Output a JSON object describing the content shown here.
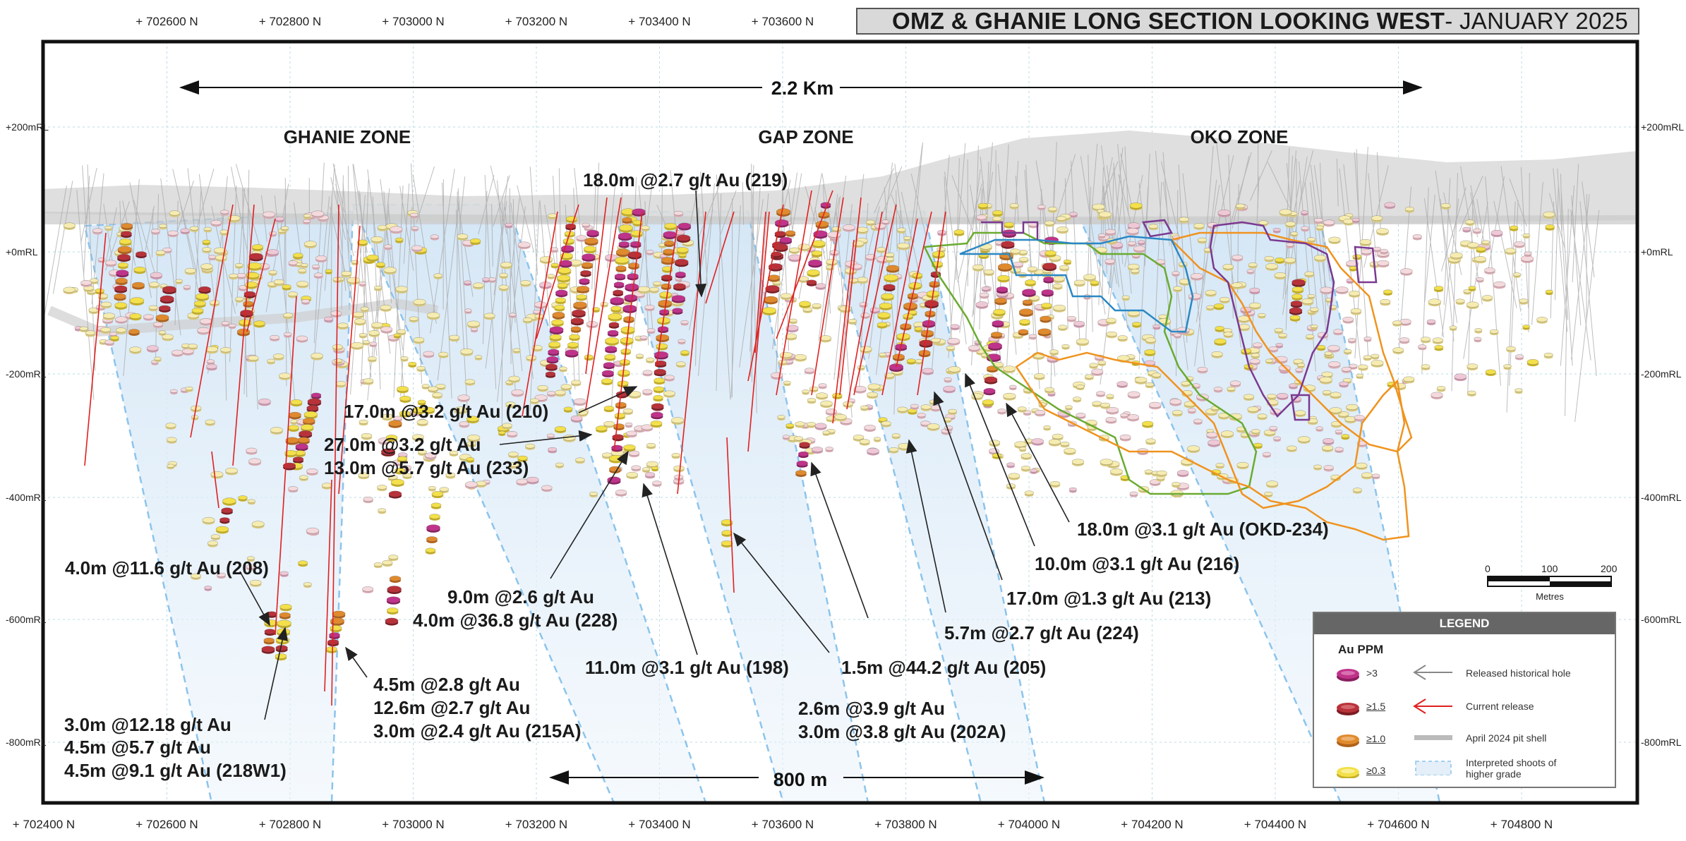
{
  "title": {
    "bold": "OMZ & GHANIE LONG SECTION LOOKING WEST",
    "rest": " - JANUARY 2025"
  },
  "top_eastings": [
    "+ 702600 N",
    "+ 702800 N",
    "+ 703000 N",
    "+ 703200 N",
    "+ 703400 N",
    "+ 703600 N"
  ],
  "bottom_eastings": [
    "+ 702400 N",
    "+ 702600 N",
    "+ 702800 N",
    "+ 703000 N",
    "+ 703200 N",
    "+ 703400 N",
    "+ 703600 N",
    "+ 703800 N",
    "+ 704000 N",
    "+ 704200 N",
    "+ 704400 N",
    "+ 704600 N",
    "+ 704800 N"
  ],
  "elevations": [
    "+200mRL",
    "+0mRL",
    "-200mRL",
    "-400mRL",
    "-600mRL",
    "-800mRL"
  ],
  "dimensions": {
    "top": "2.2 Km",
    "bottom": "800 m"
  },
  "zones": [
    "GHANIE ZONE",
    "GAP ZONE",
    "OKO ZONE"
  ],
  "intercepts": [
    {
      "lines": [
        "18.0m @2.7 g/t Au (219)"
      ]
    },
    {
      "lines": [
        "17.0m @3.2 g/t Au (210)"
      ]
    },
    {
      "lines": [
        "27.0m @3.2 g/t Au",
        "13.0m @5.7 g/t Au (233)"
      ]
    },
    {
      "lines": [
        "4.0m @11.6 g/t Au (208)"
      ]
    },
    {
      "lines": [
        "9.0m @2.6 g/t Au",
        "4.0m @36.8 g/t Au (228)"
      ]
    },
    {
      "lines": [
        "4.5m @2.8 g/t Au",
        "12.6m @2.7 g/t Au",
        "3.0m @2.4 g/t Au (215A)"
      ]
    },
    {
      "lines": [
        "3.0m @12.18 g/t Au",
        "4.5m @5.7 g/t Au",
        "4.5m @9.1 g/t Au (218W1)"
      ]
    },
    {
      "lines": [
        "11.0m @3.1 g/t Au (198)"
      ]
    },
    {
      "lines": [
        "1.5m @44.2 g/t Au (205)"
      ]
    },
    {
      "lines": [
        "2.6m @3.9 g/t Au",
        "3.0m @3.8 g/t Au (202A)"
      ]
    },
    {
      "lines": [
        "5.7m @2.7 g/t Au (224)"
      ]
    },
    {
      "lines": [
        "17.0m @1.3 g/t Au (213)"
      ]
    },
    {
      "lines": [
        "10.0m @3.1 g/t Au (216)"
      ]
    },
    {
      "lines": [
        "18.0m @3.1 g/t Au (OKD-234)"
      ]
    }
  ],
  "scale_bar": {
    "ticks": [
      "0",
      "100",
      "200"
    ],
    "unit": "Metres"
  },
  "legend": {
    "title": "LEGEND",
    "subtitle": "Au PPM",
    "grades": [
      {
        "label": ">3",
        "color": "#c0338a"
      },
      {
        "label": "≥1.5",
        "color": "#b8323a"
      },
      {
        "label": "≥1.0",
        "color": "#e08a2e"
      },
      {
        "label": "≥0.3",
        "color": "#f3e04a"
      }
    ],
    "symbols": [
      {
        "label": "Released historical hole",
        "color": "#888888"
      },
      {
        "label": "Current release",
        "color": "#e02020"
      },
      {
        "label": "April 2024 pit shell",
        "color": "#bbbbbb"
      },
      {
        "label": "Interpreted shoots of higher grade",
        "color": "#8cc4ec"
      }
    ]
  },
  "colors": {
    "pit_shell": "#d8d8d8",
    "shoot_fill": "#dcebf7",
    "shoot_line": "#8cc4ec",
    "green_zone": "#6aab2f",
    "orange_zone": "#f0931e",
    "blue_zone": "#2a88c4",
    "purple_zone": "#7a3990"
  }
}
